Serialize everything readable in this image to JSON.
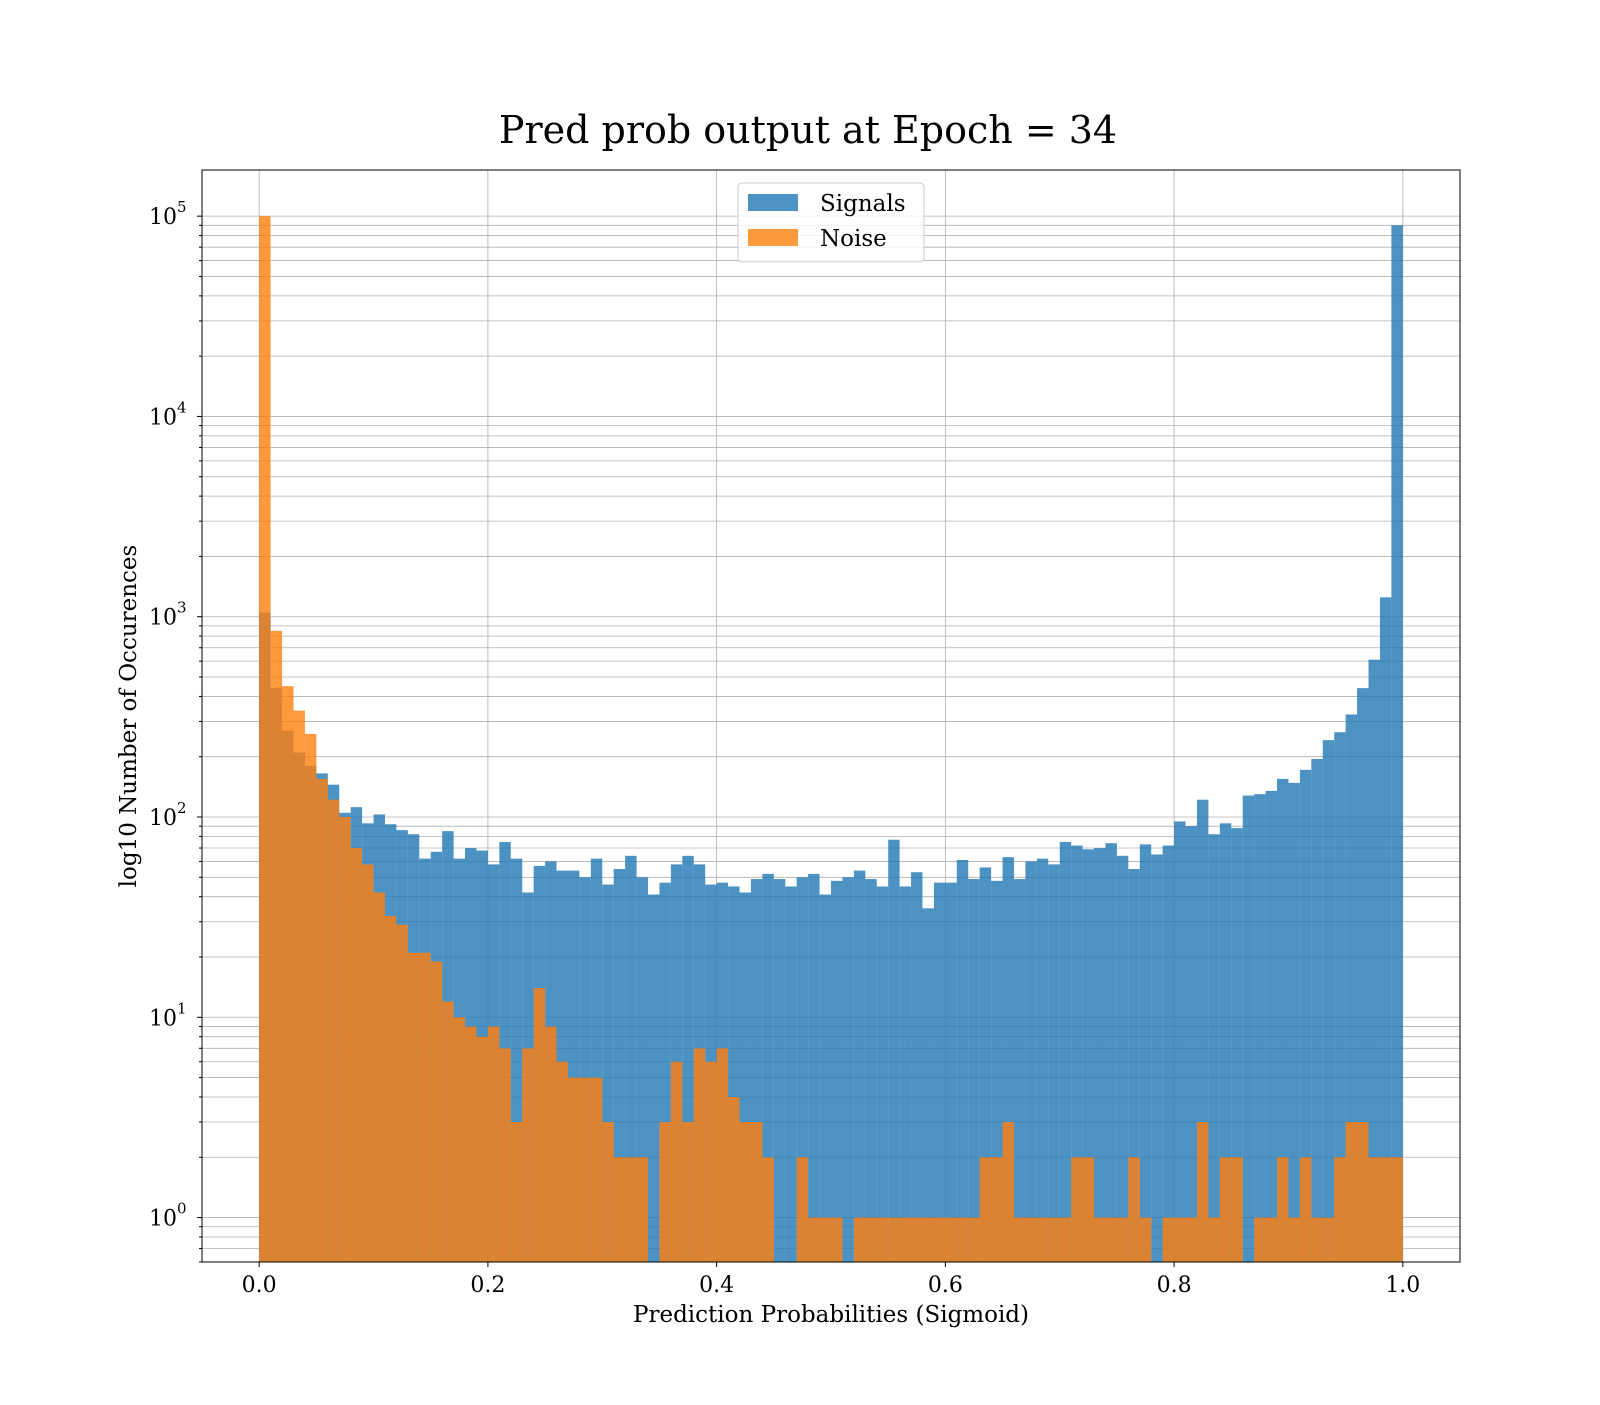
{
  "chart_data": {
    "type": "bar",
    "title": "Pred prob output at Epoch = 34",
    "xlabel": "Prediction Probabilities (Sigmoid)",
    "ylabel": "log10 Number of Occurences",
    "xlim": [
      -0.05,
      1.05
    ],
    "ylim": [
      0.6,
      170000
    ],
    "yscale": "log",
    "grid": true,
    "legend_position": "top-center",
    "x_ticks": [
      "0.0",
      "0.2",
      "0.4",
      "0.6",
      "0.8",
      "1.0"
    ],
    "x_tick_values": [
      0.0,
      0.2,
      0.4,
      0.6,
      0.8,
      1.0
    ],
    "y_tick_values": [
      1,
      10,
      100,
      1000,
      10000,
      100000
    ],
    "y_tick_base": "10",
    "y_tick_exponents": [
      "0",
      "1",
      "2",
      "3",
      "4",
      "5"
    ],
    "bin_edges_start": 0.0,
    "bin_width": 0.01,
    "series": [
      {
        "name": "Signals",
        "color": "#1f77b4",
        "values": [
          1050,
          440,
          270,
          210,
          180,
          165,
          145,
          105,
          112,
          93,
          103,
          92,
          86,
          82,
          62,
          67,
          85,
          62,
          70,
          68,
          58,
          75,
          62,
          42,
          57,
          60,
          54,
          54,
          50,
          62,
          46,
          55,
          64,
          50,
          41,
          47,
          58,
          64,
          58,
          46,
          47,
          45,
          42,
          49,
          52,
          49,
          45,
          50,
          52,
          41,
          48,
          50,
          54,
          49,
          45,
          77,
          45,
          53,
          35,
          47,
          47,
          61,
          49,
          56,
          48,
          63,
          49,
          60,
          62,
          58,
          75,
          72,
          69,
          70,
          74,
          64,
          55,
          73,
          65,
          72,
          95,
          90,
          122,
          82,
          93,
          88,
          128,
          130,
          135,
          155,
          148,
          172,
          195,
          242,
          265,
          325,
          440,
          610,
          1250,
          90000
        ]
      },
      {
        "name": "Noise",
        "color": "#ff7f0e",
        "values": [
          100000,
          850,
          450,
          340,
          260,
          155,
          122,
          100,
          70,
          58,
          42,
          32,
          29,
          21,
          21,
          19,
          12,
          10,
          9,
          8,
          9,
          7,
          3,
          7,
          14,
          9,
          6,
          5,
          5,
          5,
          3,
          2,
          2,
          2,
          0,
          3,
          6,
          3,
          7,
          6,
          7,
          4,
          3,
          3,
          2,
          0,
          0,
          2,
          1,
          1,
          1,
          0,
          1,
          1,
          1,
          1,
          1,
          1,
          1,
          1,
          1,
          1,
          1,
          2,
          2,
          3,
          1,
          1,
          1,
          1,
          1,
          2,
          2,
          1,
          1,
          1,
          2,
          1,
          0,
          1,
          1,
          1,
          3,
          1,
          2,
          2,
          0,
          1,
          1,
          2,
          1,
          2,
          1,
          1,
          2,
          3,
          3,
          2,
          2,
          2
        ]
      }
    ]
  }
}
